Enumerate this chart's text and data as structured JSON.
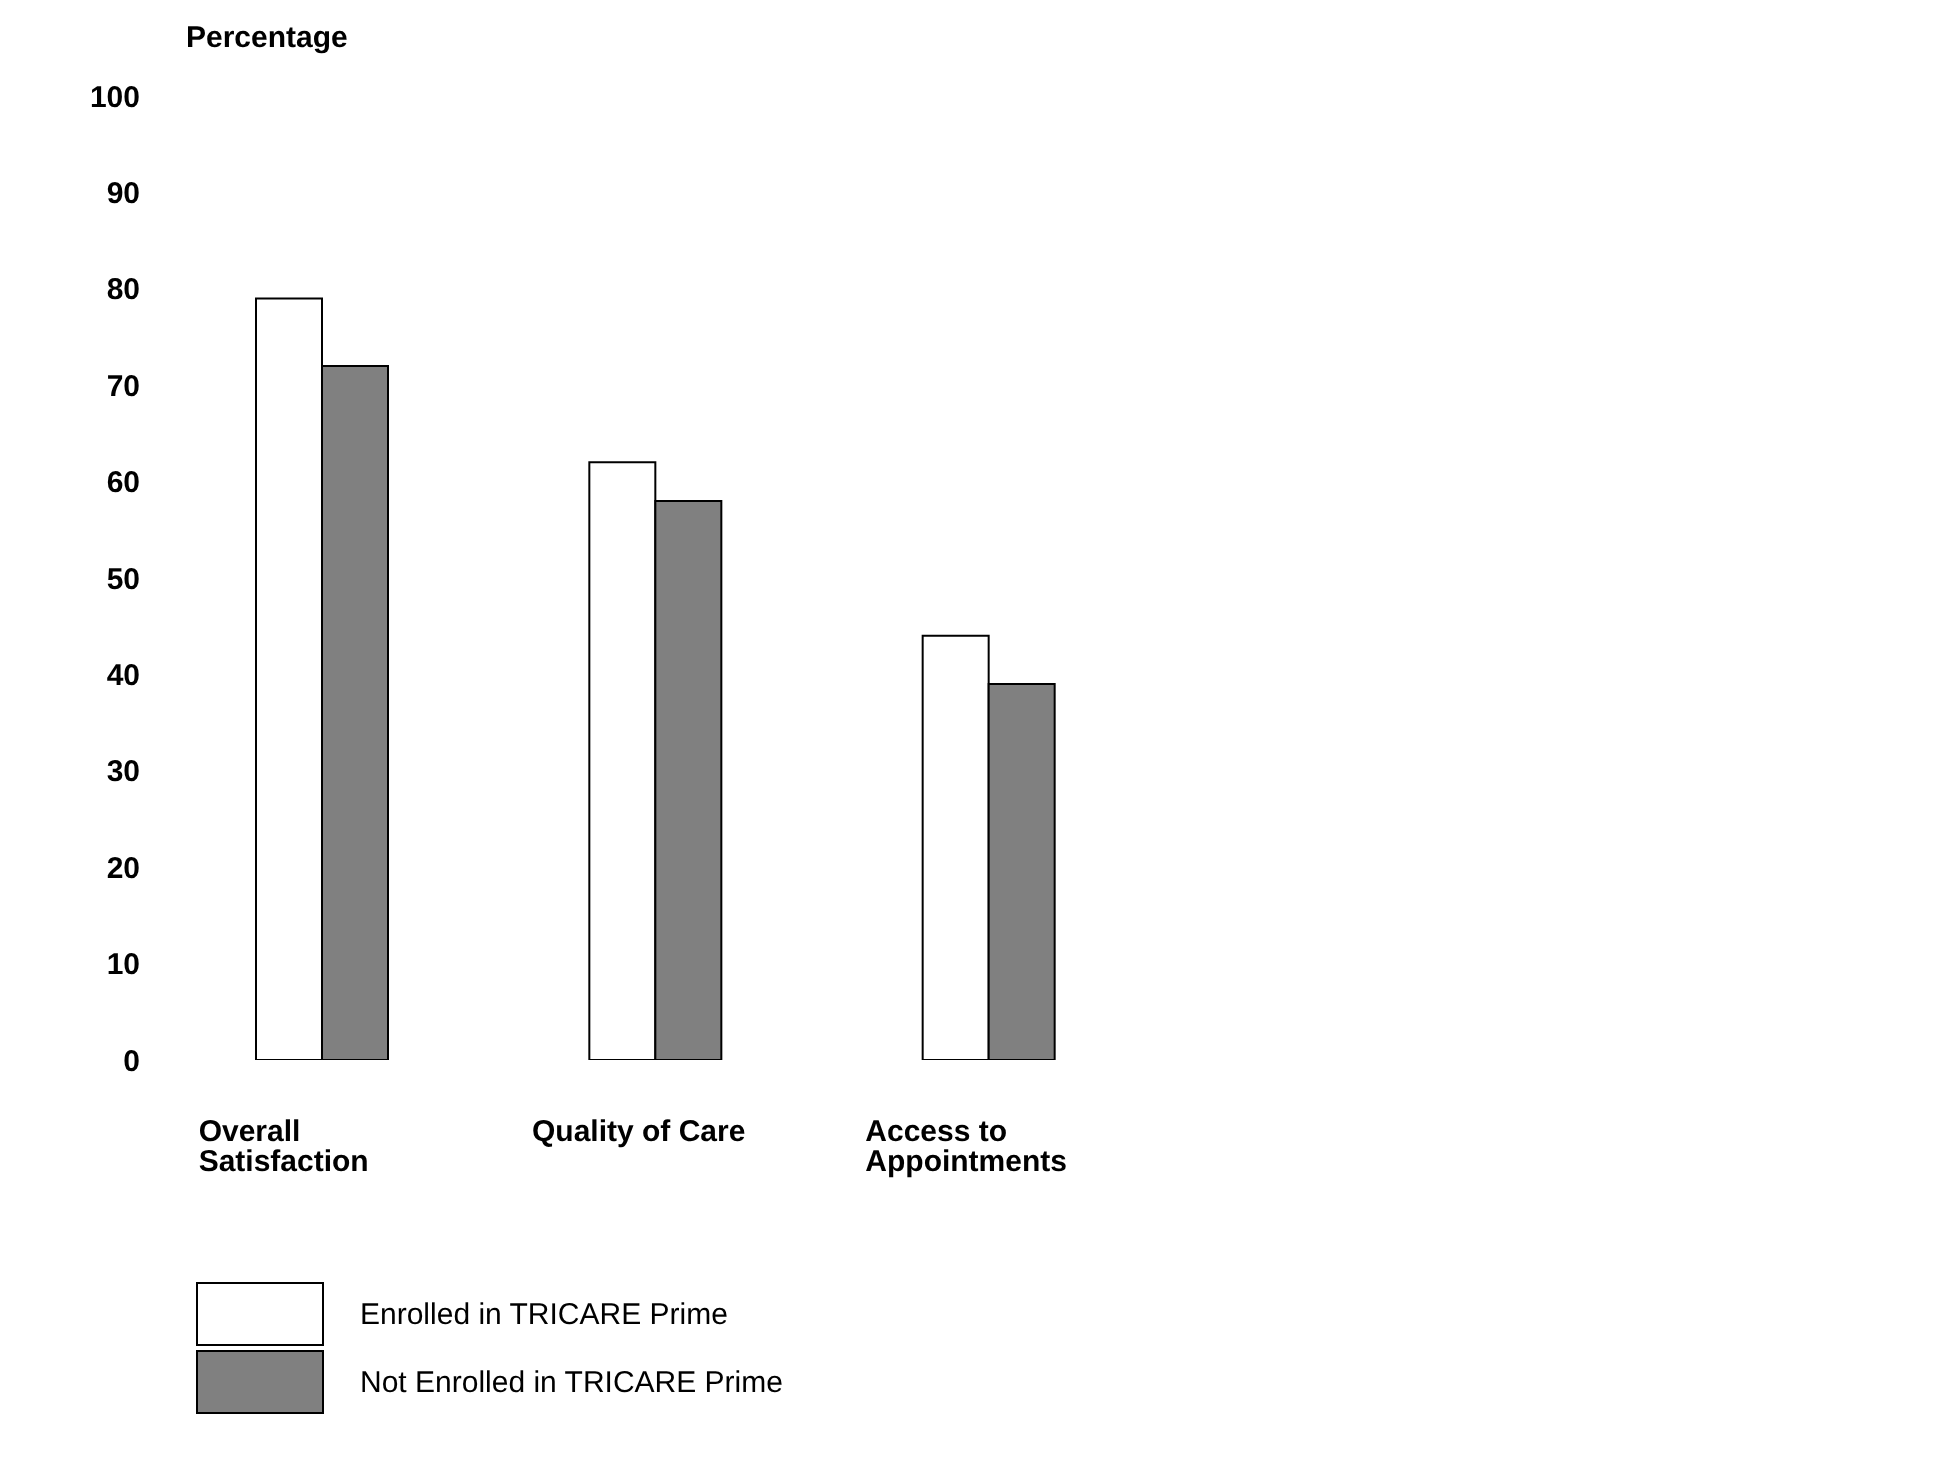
{
  "chart_data": {
    "type": "bar",
    "ylabel": "Percentage",
    "categories": [
      "Overall Satisfaction",
      "Quality of Care",
      "Access to Appointments"
    ],
    "series": [
      {
        "name": "Enrolled in TRICARE Prime",
        "color": "#ffffff",
        "values": [
          79,
          62,
          44
        ]
      },
      {
        "name": "Not Enrolled in TRICARE Prime",
        "color": "#808080",
        "values": [
          72,
          58,
          39
        ]
      }
    ],
    "ylim": [
      0,
      100
    ],
    "yticks": [
      0,
      10,
      20,
      30,
      40,
      50,
      60,
      70,
      80,
      90,
      100
    ],
    "grid": false,
    "legend": "bottom left"
  }
}
